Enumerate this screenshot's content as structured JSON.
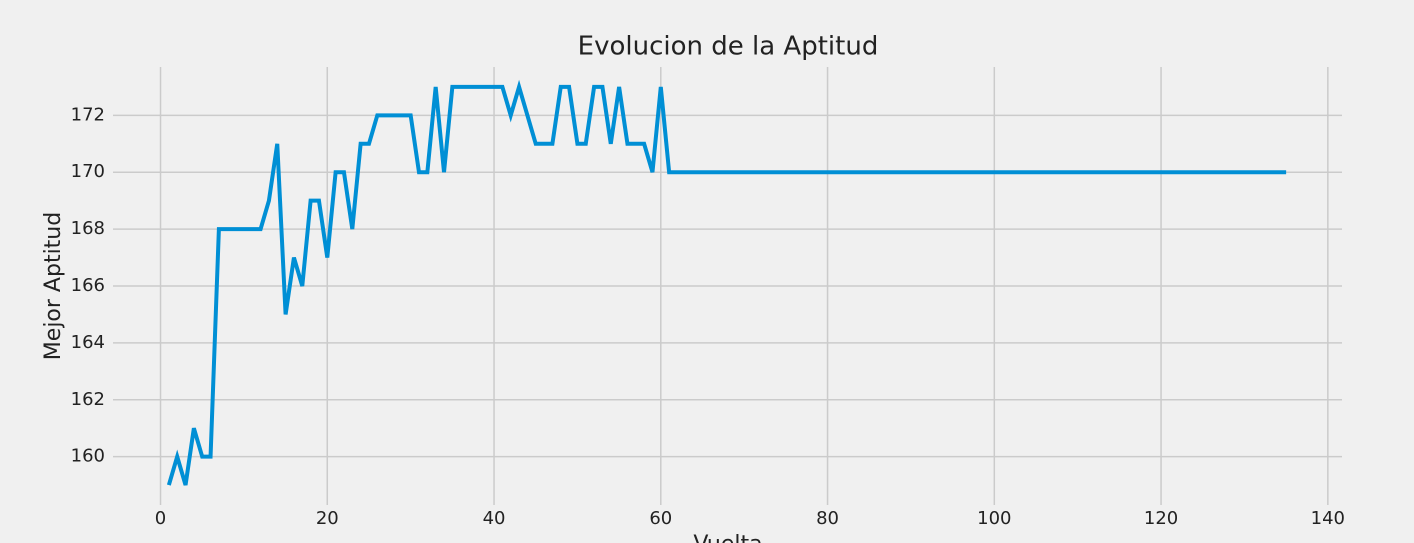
{
  "chart_data": {
    "type": "line",
    "title": "Evolucion de la Aptitud",
    "x_label": "Vuelta",
    "y_label": "Mejor Aptitud",
    "x": [
      1,
      2,
      3,
      4,
      5,
      6,
      7,
      8,
      9,
      10,
      11,
      12,
      13,
      14,
      15,
      16,
      17,
      18,
      19,
      20,
      21,
      22,
      23,
      24,
      25,
      26,
      27,
      28,
      29,
      30,
      31,
      32,
      33,
      34,
      35,
      36,
      37,
      38,
      39,
      40,
      41,
      42,
      43,
      44,
      45,
      46,
      47,
      48,
      49,
      50,
      51,
      52,
      53,
      54,
      55,
      56,
      57,
      58,
      59,
      60,
      61,
      62,
      63,
      64,
      65,
      66,
      67,
      68,
      69,
      70,
      71,
      72,
      73,
      74,
      75,
      76,
      77,
      78,
      79,
      80,
      81,
      82,
      83,
      84,
      85,
      86,
      87,
      88,
      89,
      90,
      91,
      92,
      93,
      94,
      95,
      96,
      97,
      98,
      99,
      100,
      101,
      102,
      103,
      104,
      105,
      106,
      107,
      108,
      109,
      110,
      111,
      112,
      113,
      114,
      115,
      116,
      117,
      118,
      119,
      120,
      121,
      122,
      123,
      124,
      125,
      126,
      127,
      128,
      129,
      130,
      131,
      132,
      133,
      134,
      135
    ],
    "series": [
      {
        "color": "#008fd5",
        "values": [
          159,
          160,
          159,
          161,
          160,
          160,
          168,
          168,
          168,
          168,
          168,
          168,
          169,
          171,
          165,
          167,
          166,
          169,
          169,
          167,
          170,
          170,
          168,
          171,
          171,
          172,
          172,
          172,
          172,
          172,
          170,
          170,
          173,
          170,
          173,
          173,
          173,
          173,
          173,
          173,
          173,
          172,
          173,
          172,
          171,
          171,
          171,
          173,
          173,
          171,
          171,
          173,
          173,
          171,
          173,
          171,
          171,
          171,
          170,
          173,
          170,
          170,
          170,
          170,
          170,
          170,
          170,
          170,
          170,
          170,
          170,
          170,
          170,
          170,
          170,
          170,
          170,
          170,
          170,
          170,
          170,
          170,
          170,
          170,
          170,
          170,
          170,
          170,
          170,
          170,
          170,
          170,
          170,
          170,
          170,
          170,
          170,
          170,
          170,
          170,
          170,
          170,
          170,
          170,
          170,
          170,
          170,
          170,
          170,
          170,
          170,
          170,
          170,
          170,
          170,
          170,
          170,
          170,
          170,
          170,
          170,
          170,
          170,
          170,
          170,
          170,
          170,
          170,
          170,
          170,
          170,
          170,
          170,
          170,
          170
        ]
      }
    ],
    "xlim": [
      -5.7,
      141.7
    ],
    "xticks": [
      0,
      20,
      40,
      60,
      80,
      100,
      120,
      140
    ],
    "ylim": [
      158.3,
      173.7
    ],
    "yticks": [
      160,
      162,
      164,
      166,
      168,
      170,
      172
    ],
    "grid": true
  }
}
